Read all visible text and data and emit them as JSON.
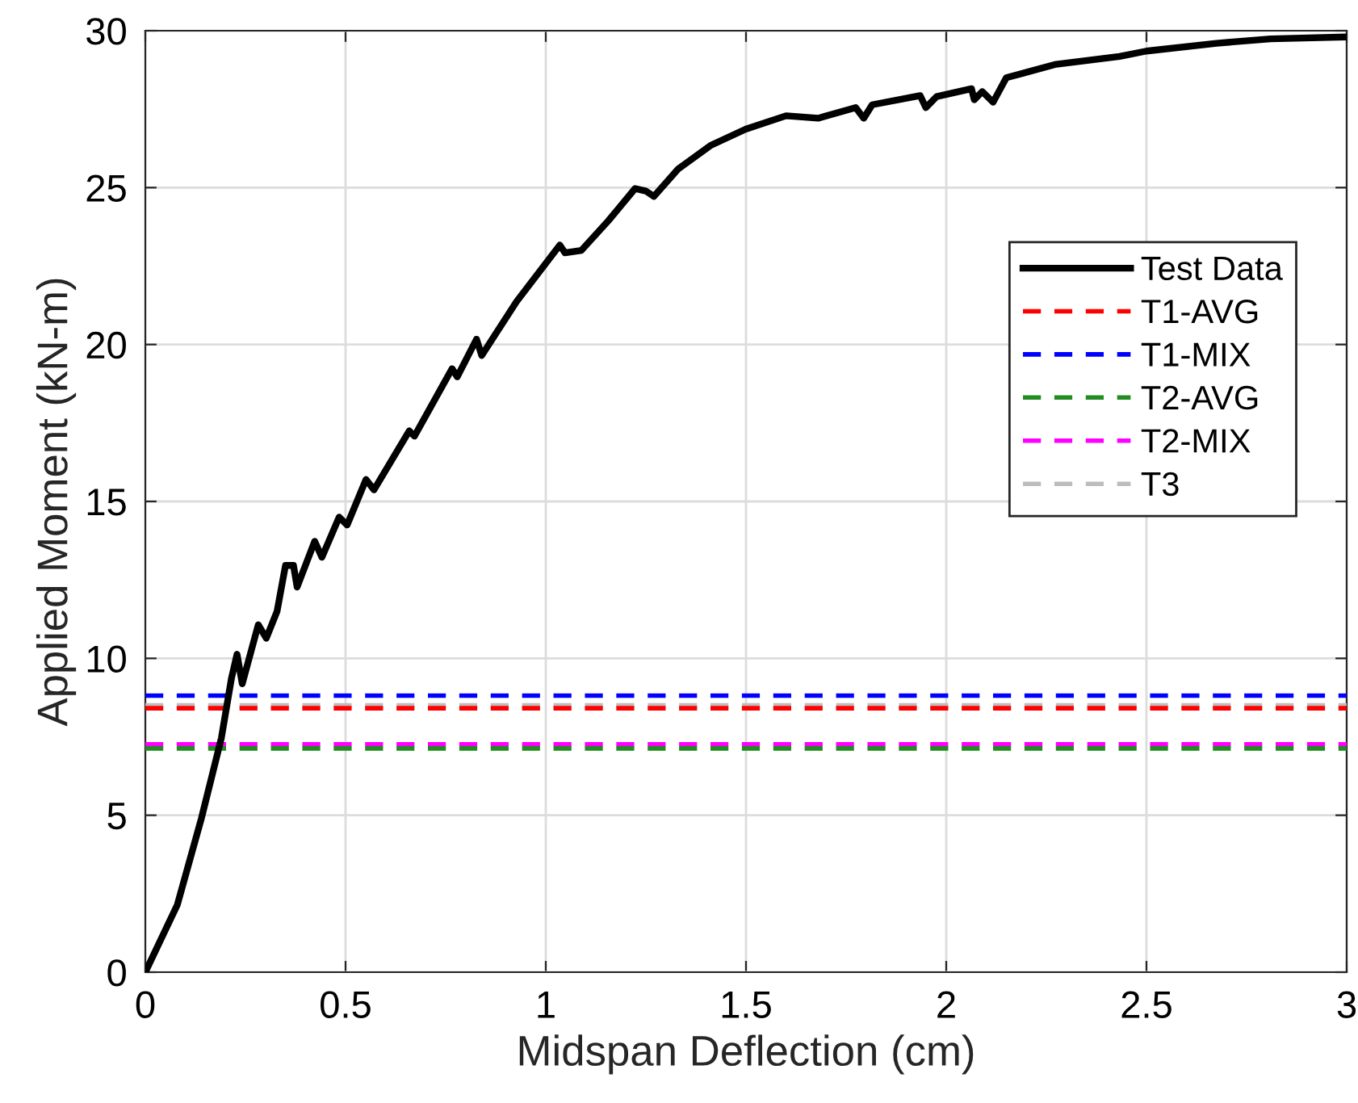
{
  "chart_data": {
    "type": "line",
    "xlabel": "Midspan Deflection (cm)",
    "ylabel": "Applied Moment (kN-m)",
    "xlim": [
      0,
      3
    ],
    "ylim": [
      0,
      30
    ],
    "xticks": [
      0,
      0.5,
      1,
      1.5,
      2,
      2.5,
      3
    ],
    "yticks": [
      0,
      5,
      10,
      15,
      20,
      25,
      30
    ],
    "grid": true,
    "legend": "right",
    "series": [
      {
        "name": "Test Data",
        "color": "#000000",
        "line_style": "solid",
        "x": [
          0,
          0.08,
          0.14,
          0.19,
          0.215,
          0.229,
          0.242,
          0.282,
          0.302,
          0.329,
          0.35,
          0.37,
          0.379,
          0.423,
          0.441,
          0.484,
          0.504,
          0.551,
          0.571,
          0.659,
          0.672,
          0.766,
          0.779,
          0.827,
          0.84,
          0.927,
          1.035,
          1.048,
          1.089,
          1.156,
          1.223,
          1.25,
          1.27,
          1.331,
          1.411,
          1.499,
          1.6,
          1.68,
          1.774,
          1.794,
          1.815,
          1.935,
          1.949,
          1.976,
          2.063,
          2.07,
          2.09,
          2.117,
          2.15,
          2.271,
          2.433,
          2.5,
          2.675,
          2.81,
          2.997
        ],
        "values": [
          0,
          2.15,
          4.9,
          7.47,
          9.36,
          10.13,
          9.19,
          11.07,
          10.64,
          11.5,
          12.96,
          12.96,
          12.27,
          13.73,
          13.22,
          14.5,
          14.25,
          15.7,
          15.37,
          17.25,
          17.08,
          19.23,
          18.97,
          20.17,
          19.65,
          21.37,
          23.17,
          22.92,
          23.0,
          23.94,
          24.97,
          24.89,
          24.72,
          25.6,
          26.34,
          26.86,
          27.29,
          27.21,
          27.55,
          27.21,
          27.64,
          27.93,
          27.55,
          27.9,
          28.15,
          27.8,
          28.06,
          27.72,
          28.5,
          28.92,
          29.18,
          29.35,
          29.6,
          29.74,
          29.8
        ]
      },
      {
        "name": "T1-AVG",
        "color": "#ff0000",
        "line_style": "dashed",
        "x": [
          0,
          3
        ],
        "values": [
          8.41,
          8.41
        ]
      },
      {
        "name": "T1-MIX",
        "color": "#0000ff",
        "line_style": "dashed",
        "x": [
          0,
          3
        ],
        "values": [
          8.81,
          8.81
        ]
      },
      {
        "name": "T2-AVG",
        "color": "#228b22",
        "line_style": "dashed",
        "x": [
          0,
          3
        ],
        "values": [
          7.13,
          7.13
        ]
      },
      {
        "name": "T2-MIX",
        "color": "#ff00ff",
        "line_style": "dashed",
        "x": [
          0,
          3
        ],
        "values": [
          7.26,
          7.26
        ]
      },
      {
        "name": "T3",
        "color": "#bdbdbd",
        "line_style": "dashed",
        "x": [
          0,
          3
        ],
        "values": [
          8.5,
          8.5
        ]
      }
    ]
  }
}
